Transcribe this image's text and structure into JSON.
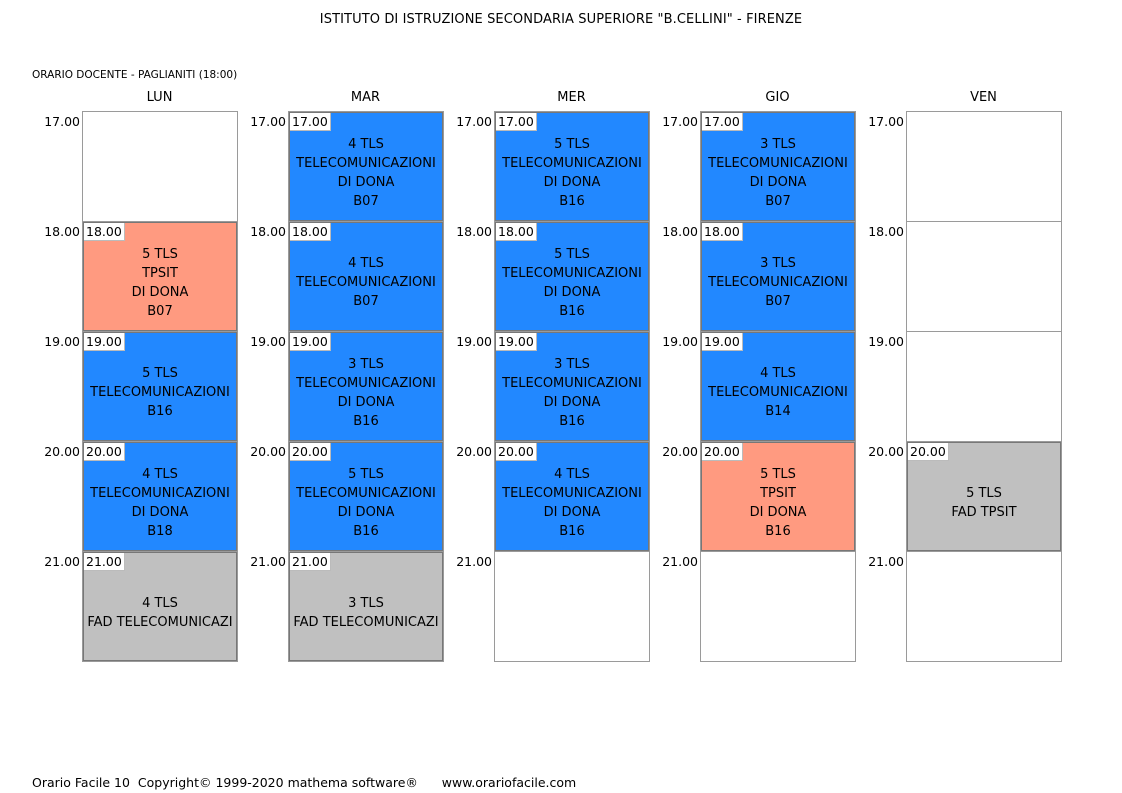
{
  "title": "ISTITUTO DI ISTRUZIONE SECONDARIA SUPERIORE \"B.CELLINI\" - FIRENZE",
  "teacher_line": "ORARIO DOCENTE   -   PAGLIANITI  (18:00)",
  "colors": {
    "lab": "#2288ff",
    "tpsit": "#ff9a80",
    "fad": "#c0c0c0"
  },
  "days": [
    {
      "name": "LUN",
      "slots": [
        {
          "time": "17.00",
          "lesson": null
        },
        {
          "time": "18.00",
          "lesson": {
            "start": "18.00",
            "kind": "tpsit",
            "lines": [
              "5 TLS",
              "TPSIT",
              "DI DONA",
              "B07"
            ]
          }
        },
        {
          "time": "19.00",
          "lesson": {
            "start": "19.00",
            "kind": "lab",
            "lines": [
              "5 TLS",
              "TELECOMUNICAZIONI",
              "B16"
            ]
          }
        },
        {
          "time": "20.00",
          "lesson": {
            "start": "20.00",
            "kind": "lab",
            "lines": [
              "4 TLS",
              "TELECOMUNICAZIONI",
              "DI DONA",
              "B18"
            ]
          }
        },
        {
          "time": "21.00",
          "lesson": {
            "start": "21.00",
            "kind": "fad",
            "lines": [
              "4 TLS",
              "FAD TELECOMUNICAZI"
            ]
          }
        }
      ]
    },
    {
      "name": "MAR",
      "slots": [
        {
          "time": "17.00",
          "lesson": {
            "start": "17.00",
            "kind": "lab",
            "lines": [
              "4 TLS",
              "TELECOMUNICAZIONI",
              "DI DONA",
              "B07"
            ]
          }
        },
        {
          "time": "18.00",
          "lesson": {
            "start": "18.00",
            "kind": "lab",
            "lines": [
              "4 TLS",
              "TELECOMUNICAZIONI",
              "B07"
            ]
          }
        },
        {
          "time": "19.00",
          "lesson": {
            "start": "19.00",
            "kind": "lab",
            "lines": [
              "3 TLS",
              "TELECOMUNICAZIONI",
              "DI DONA",
              "B16"
            ]
          }
        },
        {
          "time": "20.00",
          "lesson": {
            "start": "20.00",
            "kind": "lab",
            "lines": [
              "5 TLS",
              "TELECOMUNICAZIONI",
              "DI DONA",
              "B16"
            ]
          }
        },
        {
          "time": "21.00",
          "lesson": {
            "start": "21.00",
            "kind": "fad",
            "lines": [
              "3 TLS",
              "FAD TELECOMUNICAZI"
            ]
          }
        }
      ]
    },
    {
      "name": "MER",
      "slots": [
        {
          "time": "17.00",
          "lesson": {
            "start": "17.00",
            "kind": "lab",
            "lines": [
              "5 TLS",
              "TELECOMUNICAZIONI",
              "DI DONA",
              "B16"
            ]
          }
        },
        {
          "time": "18.00",
          "lesson": {
            "start": "18.00",
            "kind": "lab",
            "lines": [
              "5 TLS",
              "TELECOMUNICAZIONI",
              "DI DONA",
              "B16"
            ]
          }
        },
        {
          "time": "19.00",
          "lesson": {
            "start": "19.00",
            "kind": "lab",
            "lines": [
              "3 TLS",
              "TELECOMUNICAZIONI",
              "DI DONA",
              "B16"
            ]
          }
        },
        {
          "time": "20.00",
          "lesson": {
            "start": "20.00",
            "kind": "lab",
            "lines": [
              "4 TLS",
              "TELECOMUNICAZIONI",
              "DI DONA",
              "B16"
            ]
          }
        },
        {
          "time": "21.00",
          "lesson": null
        }
      ]
    },
    {
      "name": "GIO",
      "slots": [
        {
          "time": "17.00",
          "lesson": {
            "start": "17.00",
            "kind": "lab",
            "lines": [
              "3 TLS",
              "TELECOMUNICAZIONI",
              "DI DONA",
              "B07"
            ]
          }
        },
        {
          "time": "18.00",
          "lesson": {
            "start": "18.00",
            "kind": "lab",
            "lines": [
              "3 TLS",
              "TELECOMUNICAZIONI",
              "B07"
            ]
          }
        },
        {
          "time": "19.00",
          "lesson": {
            "start": "19.00",
            "kind": "lab",
            "lines": [
              "4 TLS",
              "TELECOMUNICAZIONI",
              "B14"
            ]
          }
        },
        {
          "time": "20.00",
          "lesson": {
            "start": "20.00",
            "kind": "tpsit",
            "lines": [
              "5 TLS",
              "TPSIT",
              "DI DONA",
              "B16"
            ]
          }
        },
        {
          "time": "21.00",
          "lesson": null
        }
      ]
    },
    {
      "name": "VEN",
      "slots": [
        {
          "time": "17.00",
          "lesson": null
        },
        {
          "time": "18.00",
          "lesson": null
        },
        {
          "time": "19.00",
          "lesson": null
        },
        {
          "time": "20.00",
          "lesson": {
            "start": "20.00",
            "kind": "fad",
            "lines": [
              "5 TLS",
              "FAD TPSIT"
            ]
          }
        },
        {
          "time": "21.00",
          "lesson": null
        }
      ]
    }
  ],
  "footer": "Orario Facile 10  Copyright© 1999-2020 mathema software®      www.orariofacile.com"
}
